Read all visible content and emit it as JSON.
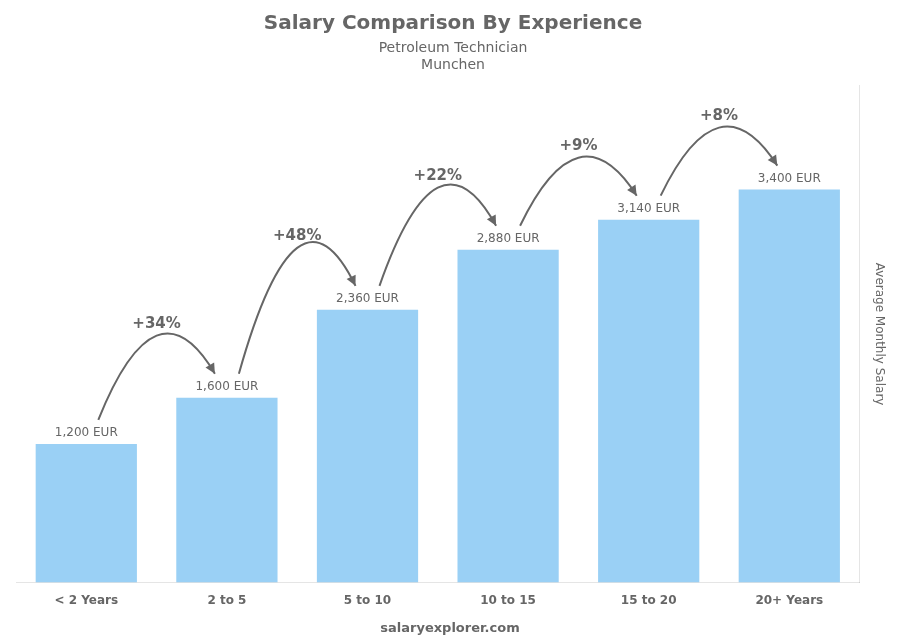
{
  "chart_data": {
    "type": "bar",
    "title": "Salary Comparison By Experience",
    "subtitle": [
      "Petroleum Technician",
      "Munchen"
    ],
    "categories": [
      "< 2 Years",
      "2 to 5",
      "5 to 10",
      "10 to 15",
      "15 to 20",
      "20+ Years"
    ],
    "values": [
      1200,
      1600,
      2360,
      2880,
      3140,
      3400
    ],
    "value_labels": [
      "1,200 EUR",
      "1,600 EUR",
      "2,360 EUR",
      "2,880 EUR",
      "3,140 EUR",
      "3,400 EUR"
    ],
    "data_labels": true,
    "ylabel": "Average Monthly Salary",
    "ylim": [
      0,
      4300
    ],
    "tick_labels": "x",
    "grid": false,
    "annotations": [
      {
        "text": "+34%",
        "from": "< 2 Years",
        "to": "2 to 5"
      },
      {
        "text": "+48%",
        "from": "2 to 5",
        "to": "5 to 10"
      },
      {
        "text": "+22%",
        "from": "5 to 10",
        "to": "10 to 15"
      },
      {
        "text": "+9%",
        "from": "10 to 15",
        "to": "15 to 20"
      },
      {
        "text": "+8%",
        "from": "15 to 20",
        "to": "20+ Years"
      },
      {
        "text": "salaryexplorer.com"
      }
    ]
  }
}
